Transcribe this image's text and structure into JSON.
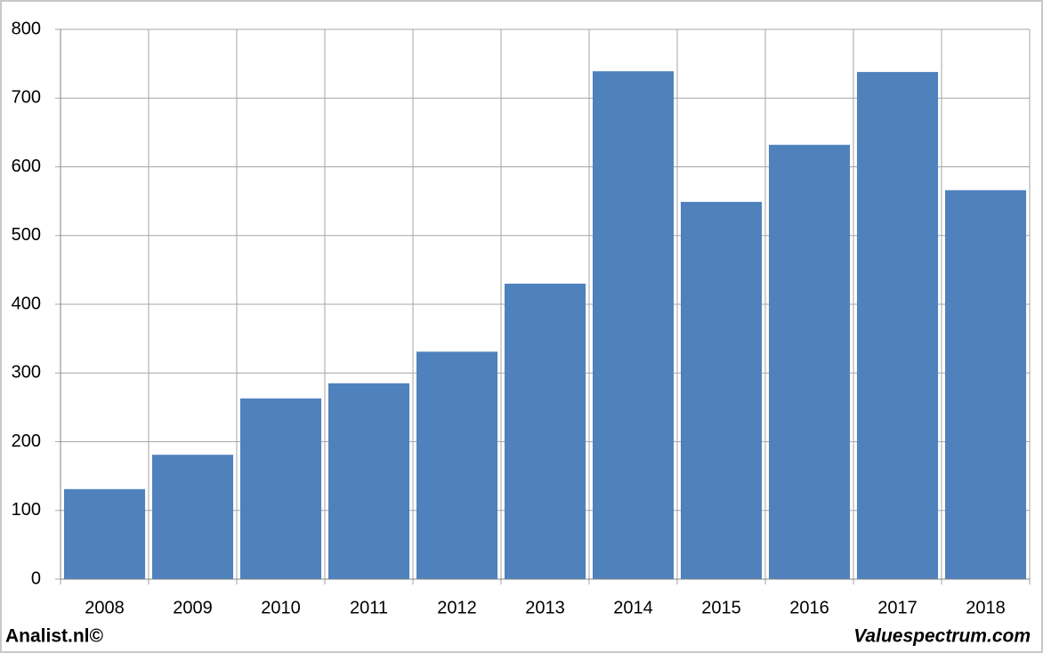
{
  "chart_data": {
    "type": "bar",
    "categories": [
      "2008",
      "2009",
      "2010",
      "2011",
      "2012",
      "2013",
      "2014",
      "2015",
      "2016",
      "2017",
      "2018"
    ],
    "values": [
      131,
      181,
      263,
      285,
      331,
      430,
      739,
      549,
      632,
      738,
      566
    ],
    "color": "#4f81bd",
    "ylim": [
      0,
      800
    ],
    "yticks": [
      0,
      100,
      200,
      300,
      400,
      500,
      600,
      700,
      800
    ],
    "grid": true
  },
  "footer": {
    "left": "Analist.nl©",
    "right": "Valuespectrum.com"
  }
}
